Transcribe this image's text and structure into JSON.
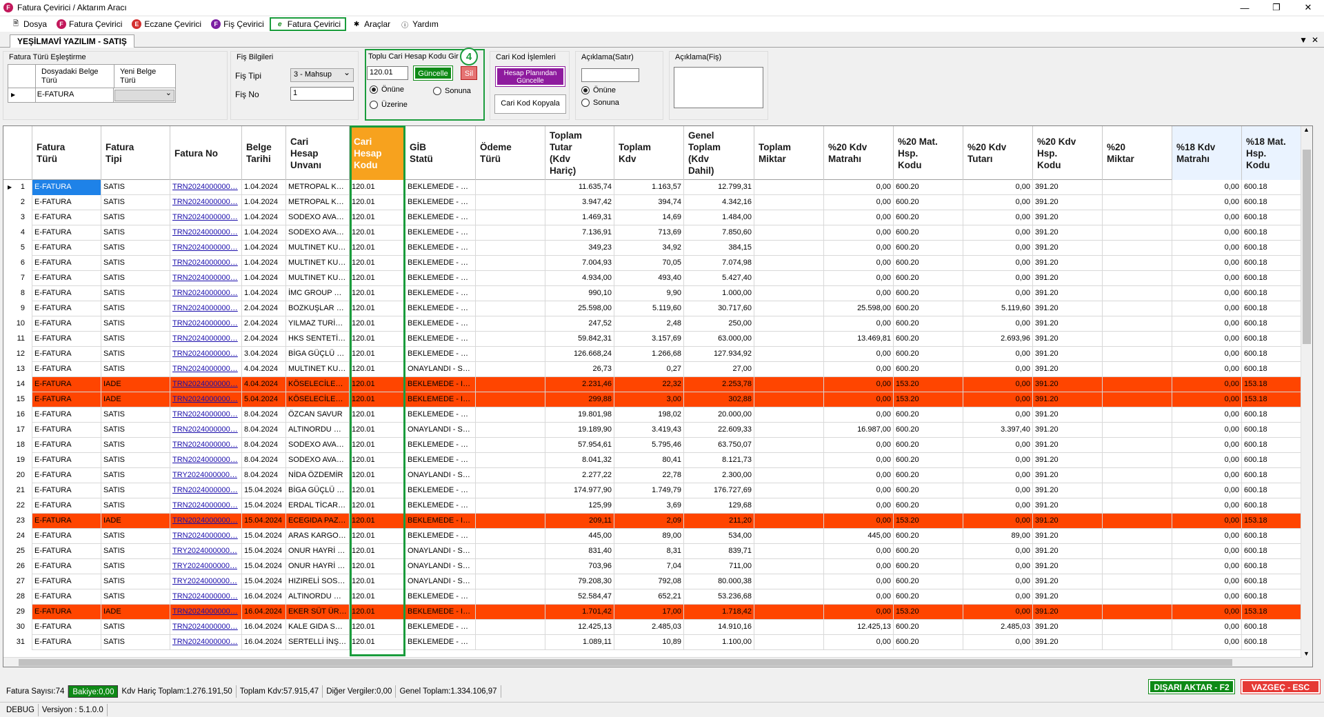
{
  "window": {
    "title": "Fatura Çevirici / Aktarım Aracı",
    "app_icon": "F"
  },
  "menu": [
    {
      "label": "Dosya",
      "icon": "document-icon"
    },
    {
      "label": "Fatura Çevirici",
      "icon": "F"
    },
    {
      "label": "Eczane Çevirici",
      "icon": "E"
    },
    {
      "label": "Fiş Çevirici",
      "icon": "F"
    },
    {
      "label": "Fatura Çevirici",
      "icon": "e"
    },
    {
      "label": "Araçlar",
      "icon": "tools-icon"
    },
    {
      "label": "Yardım",
      "icon": "help-icon"
    }
  ],
  "tab": {
    "label": "YEŞİLMAVİ YAZILIM - SATIŞ"
  },
  "mapping": {
    "title": "Fatura Türü Eşleştirme",
    "col1": "Dosyadaki Belge Türü",
    "col2": "Yeni Belge Türü",
    "row_value": "E-FATURA"
  },
  "fis": {
    "title": "Fiş Bilgileri",
    "tip_label": "Fiş Tipi",
    "tip_value": "3 - Mahsup",
    "no_label": "Fiş No",
    "no_value": "1"
  },
  "toplu": {
    "title": "Toplu Cari Hesap Kodu Gir",
    "value": "120.01",
    "update": "Güncelle",
    "delete": "Sil",
    "r1": "Önüne",
    "r2": "Sonuna",
    "r3": "Üzerine",
    "badge": "4"
  },
  "cari": {
    "title": "Cari Kod İşlemleri",
    "btn1_l1": "Hesap Planından",
    "btn1_l2": "Güncelle",
    "btn2": "Cari Kod Kopyala"
  },
  "acik_satir": {
    "title": "Açıklama(Satır)",
    "r1": "Önüne",
    "r2": "Sonuna"
  },
  "acik_fis": {
    "title": "Açıklama(Fiş)"
  },
  "headers": [
    "Fatura\nTürü",
    "Fatura\nTipi",
    "Fatura No",
    "Belge\nTarihi",
    "Cari\nHesap\nUnvanı",
    "Cari\nHesap\nKodu",
    "GİB\nStatü",
    "Ödeme\nTürü",
    "Toplam\nTutar\n(Kdv\nHariç)",
    "Toplam\nKdv",
    "Genel\nToplam\n(Kdv\nDahil)",
    "Toplam\nMiktar",
    "%20 Kdv\nMatrahı",
    "%20 Mat.\nHsp.\nKodu",
    "%20 Kdv\nTutarı",
    "%20 Kdv\nHsp.\nKodu",
    "%20\nMiktar",
    "%18 Kdv\nMatrahı",
    "%18 Mat.\nHsp.\nKodu"
  ],
  "rows": [
    [
      "1",
      "E-FATURA",
      "SATIS",
      "TRN2024000000…",
      "1.04.2024",
      "METROPAL KU…",
      "120.01",
      "BEKLEMEDE - SA…",
      "",
      "11.635,74",
      "1.163,57",
      "12.799,31",
      "",
      "0,00",
      "600.20",
      "0,00",
      "391.20",
      "",
      "0,00",
      "600.18"
    ],
    [
      "2",
      "E-FATURA",
      "SATIS",
      "TRN2024000000…",
      "1.04.2024",
      "METROPAL KU…",
      "120.01",
      "BEKLEMEDE - SA…",
      "",
      "3.947,42",
      "394,74",
      "4.342,16",
      "",
      "0,00",
      "600.20",
      "0,00",
      "391.20",
      "",
      "0,00",
      "600.18"
    ],
    [
      "3",
      "E-FATURA",
      "SATIS",
      "TRN2024000000…",
      "1.04.2024",
      "SODEXO AVAN…",
      "120.01",
      "BEKLEMEDE - SA…",
      "",
      "1.469,31",
      "14,69",
      "1.484,00",
      "",
      "0,00",
      "600.20",
      "0,00",
      "391.20",
      "",
      "0,00",
      "600.18"
    ],
    [
      "4",
      "E-FATURA",
      "SATIS",
      "TRN2024000000…",
      "1.04.2024",
      "SODEXO AVAN…",
      "120.01",
      "BEKLEMEDE - SA…",
      "",
      "7.136,91",
      "713,69",
      "7.850,60",
      "",
      "0,00",
      "600.20",
      "0,00",
      "391.20",
      "",
      "0,00",
      "600.18"
    ],
    [
      "5",
      "E-FATURA",
      "SATIS",
      "TRN2024000000…",
      "1.04.2024",
      "MULTINET KUR…",
      "120.01",
      "BEKLEMEDE - SA…",
      "",
      "349,23",
      "34,92",
      "384,15",
      "",
      "0,00",
      "600.20",
      "0,00",
      "391.20",
      "",
      "0,00",
      "600.18"
    ],
    [
      "6",
      "E-FATURA",
      "SATIS",
      "TRN2024000000…",
      "1.04.2024",
      "MULTINET KUR…",
      "120.01",
      "BEKLEMEDE - SA…",
      "",
      "7.004,93",
      "70,05",
      "7.074,98",
      "",
      "0,00",
      "600.20",
      "0,00",
      "391.20",
      "",
      "0,00",
      "600.18"
    ],
    [
      "7",
      "E-FATURA",
      "SATIS",
      "TRN2024000000…",
      "1.04.2024",
      "MULTINET KUR…",
      "120.01",
      "BEKLEMEDE - SA…",
      "",
      "4.934,00",
      "493,40",
      "5.427,40",
      "",
      "0,00",
      "600.20",
      "0,00",
      "391.20",
      "",
      "0,00",
      "600.18"
    ],
    [
      "8",
      "E-FATURA",
      "SATIS",
      "TRN2024000000…",
      "1.04.2024",
      "İMC GROUP GI…",
      "120.01",
      "BEKLEMEDE - SA…",
      "",
      "990,10",
      "9,90",
      "1.000,00",
      "",
      "0,00",
      "600.20",
      "0,00",
      "391.20",
      "",
      "0,00",
      "600.18"
    ],
    [
      "9",
      "E-FATURA",
      "SATIS",
      "TRN2024000000…",
      "2.04.2024",
      "BOZKUŞLAR GI…",
      "120.01",
      "BEKLEMEDE - SA…",
      "",
      "25.598,00",
      "5.119,60",
      "30.717,60",
      "",
      "25.598,00",
      "600.20",
      "5.119,60",
      "391.20",
      "",
      "0,00",
      "600.18"
    ],
    [
      "10",
      "E-FATURA",
      "SATIS",
      "TRN2024000000…",
      "2.04.2024",
      "YILMAZ TURİZ…",
      "120.01",
      "BEKLEMEDE - SA…",
      "",
      "247,52",
      "2,48",
      "250,00",
      "",
      "0,00",
      "600.20",
      "0,00",
      "391.20",
      "",
      "0,00",
      "600.18"
    ],
    [
      "11",
      "E-FATURA",
      "SATIS",
      "TRN2024000000…",
      "2.04.2024",
      "HKS SENTETİK …",
      "120.01",
      "BEKLEMEDE - SA…",
      "",
      "59.842,31",
      "3.157,69",
      "63.000,00",
      "",
      "13.469,81",
      "600.20",
      "2.693,96",
      "391.20",
      "",
      "0,00",
      "600.18"
    ],
    [
      "12",
      "E-FATURA",
      "SATIS",
      "TRN2024000000…",
      "3.04.2024",
      "BİGA GÜÇLÜ G…",
      "120.01",
      "BEKLEMEDE - SA…",
      "",
      "126.668,24",
      "1.266,68",
      "127.934,92",
      "",
      "0,00",
      "600.20",
      "0,00",
      "391.20",
      "",
      "0,00",
      "600.18"
    ],
    [
      "13",
      "E-FATURA",
      "SATIS",
      "TRN2024000000…",
      "4.04.2024",
      "MULTINET KUR…",
      "120.01",
      "ONAYLANDI - S…",
      "",
      "26,73",
      "0,27",
      "27,00",
      "",
      "0,00",
      "600.20",
      "0,00",
      "391.20",
      "",
      "0,00",
      "600.18"
    ],
    [
      "14",
      "E-FATURA",
      "IADE",
      "TRN2024000000…",
      "4.04.2024",
      "KÖSELECİLER …",
      "120.01",
      "BEKLEMEDE - IA…",
      "",
      "2.231,46",
      "22,32",
      "2.253,78",
      "",
      "0,00",
      "153.20",
      "0,00",
      "391.20",
      "",
      "0,00",
      "153.18"
    ],
    [
      "15",
      "E-FATURA",
      "IADE",
      "TRN2024000000…",
      "5.04.2024",
      "KÖSELECİLER …",
      "120.01",
      "BEKLEMEDE - IA…",
      "",
      "299,88",
      "3,00",
      "302,88",
      "",
      "0,00",
      "153.20",
      "0,00",
      "391.20",
      "",
      "0,00",
      "153.18"
    ],
    [
      "16",
      "E-FATURA",
      "SATIS",
      "TRN2024000000…",
      "8.04.2024",
      "ÖZCAN SAVUR",
      "120.01",
      "BEKLEMEDE - SA…",
      "",
      "19.801,98",
      "198,02",
      "20.000,00",
      "",
      "0,00",
      "600.20",
      "0,00",
      "391.20",
      "",
      "0,00",
      "600.18"
    ],
    [
      "17",
      "E-FATURA",
      "SATIS",
      "TRN2024000000…",
      "8.04.2024",
      "ALTINORDU M…",
      "120.01",
      "ONAYLANDI - S…",
      "",
      "19.189,90",
      "3.419,43",
      "22.609,33",
      "",
      "16.987,00",
      "600.20",
      "3.397,40",
      "391.20",
      "",
      "0,00",
      "600.18"
    ],
    [
      "18",
      "E-FATURA",
      "SATIS",
      "TRN2024000000…",
      "8.04.2024",
      "SODEXO AVAN…",
      "120.01",
      "BEKLEMEDE - SA…",
      "",
      "57.954,61",
      "5.795,46",
      "63.750,07",
      "",
      "0,00",
      "600.20",
      "0,00",
      "391.20",
      "",
      "0,00",
      "600.18"
    ],
    [
      "19",
      "E-FATURA",
      "SATIS",
      "TRN2024000000…",
      "8.04.2024",
      "SODEXO AVAN…",
      "120.01",
      "BEKLEMEDE - SA…",
      "",
      "8.041,32",
      "80,41",
      "8.121,73",
      "",
      "0,00",
      "600.20",
      "0,00",
      "391.20",
      "",
      "0,00",
      "600.18"
    ],
    [
      "20",
      "E-FATURA",
      "SATIS",
      "TRY2024000000…",
      "8.04.2024",
      "NİDA ÖZDEMİR",
      "120.01",
      "ONAYLANDI - S…",
      "",
      "2.277,22",
      "22,78",
      "2.300,00",
      "",
      "0,00",
      "600.20",
      "0,00",
      "391.20",
      "",
      "0,00",
      "600.18"
    ],
    [
      "21",
      "E-FATURA",
      "SATIS",
      "TRN2024000000…",
      "15.04.2024",
      "BİGA GÜÇLÜ G…",
      "120.01",
      "BEKLEMEDE - SA…",
      "",
      "174.977,90",
      "1.749,79",
      "176.727,69",
      "",
      "0,00",
      "600.20",
      "0,00",
      "391.20",
      "",
      "0,00",
      "600.18"
    ],
    [
      "22",
      "E-FATURA",
      "SATIS",
      "TRN2024000000…",
      "15.04.2024",
      "ERDAL TİCARE…",
      "120.01",
      "BEKLEMEDE - SA…",
      "",
      "125,99",
      "3,69",
      "129,68",
      "",
      "0,00",
      "600.20",
      "0,00",
      "391.20",
      "",
      "0,00",
      "600.18"
    ],
    [
      "23",
      "E-FATURA",
      "IADE",
      "TRN2024000000…",
      "15.04.2024",
      "ECEGIDA PAZA…",
      "120.01",
      "BEKLEMEDE - IA…",
      "",
      "209,11",
      "2,09",
      "211,20",
      "",
      "0,00",
      "153.20",
      "0,00",
      "391.20",
      "",
      "0,00",
      "153.18"
    ],
    [
      "24",
      "E-FATURA",
      "SATIS",
      "TRN2024000000…",
      "15.04.2024",
      "ARAS KARGO …",
      "120.01",
      "BEKLEMEDE - SA…",
      "",
      "445,00",
      "89,00",
      "534,00",
      "",
      "445,00",
      "600.20",
      "89,00",
      "391.20",
      "",
      "0,00",
      "600.18"
    ],
    [
      "25",
      "E-FATURA",
      "SATIS",
      "TRY2024000000…",
      "15.04.2024",
      "ONUR HAYRİ U…",
      "120.01",
      "ONAYLANDI - S…",
      "",
      "831,40",
      "8,31",
      "839,71",
      "",
      "0,00",
      "600.20",
      "0,00",
      "391.20",
      "",
      "0,00",
      "600.18"
    ],
    [
      "26",
      "E-FATURA",
      "SATIS",
      "TRY2024000000…",
      "15.04.2024",
      "ONUR HAYRİ U…",
      "120.01",
      "ONAYLANDI - S…",
      "",
      "703,96",
      "7,04",
      "711,00",
      "",
      "0,00",
      "600.20",
      "0,00",
      "391.20",
      "",
      "0,00",
      "600.18"
    ],
    [
      "27",
      "E-FATURA",
      "SATIS",
      "TRY2024000000…",
      "15.04.2024",
      "HIZIRELİ SOSY…",
      "120.01",
      "ONAYLANDI - S…",
      "",
      "79.208,30",
      "792,08",
      "80.000,38",
      "",
      "0,00",
      "600.20",
      "0,00",
      "391.20",
      "",
      "0,00",
      "600.18"
    ],
    [
      "28",
      "E-FATURA",
      "SATIS",
      "TRN2024000000…",
      "16.04.2024",
      "ALTINORDU M…",
      "120.01",
      "BEKLEMEDE - SA…",
      "",
      "52.584,47",
      "652,21",
      "53.236,68",
      "",
      "0,00",
      "600.20",
      "0,00",
      "391.20",
      "",
      "0,00",
      "600.18"
    ],
    [
      "29",
      "E-FATURA",
      "IADE",
      "TRN2024000000…",
      "16.04.2024",
      "EKER SÜT ÜRÜ…",
      "120.01",
      "BEKLEMEDE - IA…",
      "",
      "1.701,42",
      "17,00",
      "1.718,42",
      "",
      "0,00",
      "153.20",
      "0,00",
      "391.20",
      "",
      "0,00",
      "153.18"
    ],
    [
      "30",
      "E-FATURA",
      "SATIS",
      "TRN2024000000…",
      "16.04.2024",
      "KALE GIDA SA…",
      "120.01",
      "BEKLEMEDE - SA…",
      "",
      "12.425,13",
      "2.485,03",
      "14.910,16",
      "",
      "12.425,13",
      "600.20",
      "2.485,03",
      "391.20",
      "",
      "0,00",
      "600.18"
    ],
    [
      "31",
      "E-FATURA",
      "SATIS",
      "TRN2024000000…",
      "16.04.2024",
      "SERTELLİ İNŞA…",
      "120.01",
      "BEKLEMEDE - SA…",
      "",
      "1.089,11",
      "10,89",
      "1.100,00",
      "",
      "0,00",
      "600.20",
      "0,00",
      "391.20",
      "",
      "0,00",
      "600.18"
    ]
  ],
  "status": {
    "count": "Fatura Sayısı:74",
    "bakiye": "Bakiye:0,00",
    "kdvharic": "Kdv Hariç Toplam:1.276.191,50",
    "kdv": "Toplam Kdv:57.915,47",
    "diger": "Diğer Vergiler:0,00",
    "genel": "Genel Toplam:1.334.106,97"
  },
  "actions": {
    "export": "DIŞARI AKTAR - F2",
    "cancel": "VAZGEÇ - ESC"
  },
  "footer": {
    "mode": "DEBUG",
    "version": "Versiyon : 5.1.0.0"
  },
  "colors": {
    "iade_row": "#ff4500",
    "highlight": "#1a9c3c",
    "selected_header": "#f7a21e"
  }
}
